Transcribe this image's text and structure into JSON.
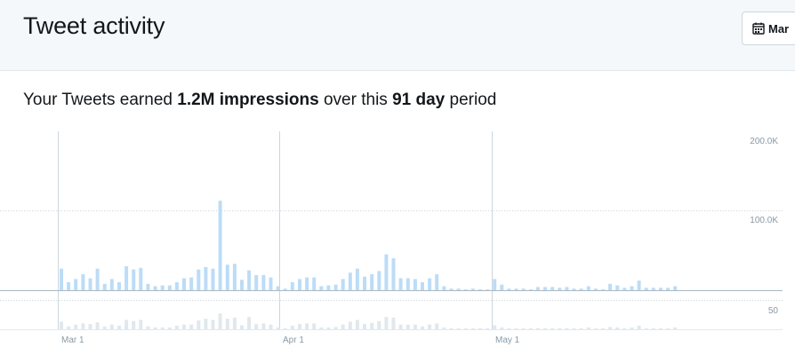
{
  "header": {
    "title": "Tweet activity",
    "date_button_label": "Mar",
    "calendar_icon": "calendar-icon"
  },
  "summary": {
    "prefix": "Your Tweets earned ",
    "impressions": "1.2M impressions",
    "middle": " over this ",
    "days": "91 day",
    "suffix": " period"
  },
  "colors": {
    "impressions_bar": "#bcdcf7",
    "engagements_bar": "#e1e8ed",
    "gridline": "#ccd6dd",
    "axis_text": "#8899a6"
  },
  "chart_data": [
    {
      "type": "bar",
      "title": "",
      "series": [
        {
          "values": [
            27,
            10,
            14,
            20,
            15,
            27,
            8,
            14,
            10,
            30,
            26,
            28,
            8,
            5,
            6,
            6,
            10,
            15,
            16,
            26,
            29,
            27,
            112,
            32,
            33,
            13,
            25,
            19,
            19,
            16,
            5,
            2,
            10,
            14,
            16,
            16,
            5,
            6,
            7,
            14,
            22,
            27,
            17,
            20,
            24,
            45,
            40,
            15,
            15,
            14,
            10,
            15,
            20,
            5,
            2,
            2,
            1,
            2,
            1,
            1,
            14,
            7,
            2,
            2,
            2,
            1,
            4,
            4,
            4,
            3,
            4,
            2,
            2,
            5,
            2,
            1,
            8,
            6,
            3,
            5,
            12,
            3,
            3,
            3,
            3,
            5
          ]
        }
      ],
      "y_ticks": [
        "200.0K",
        "100.0K"
      ],
      "ylim": [
        0,
        200000
      ],
      "x_ticks": [
        "Mar 1",
        "Apr 1",
        "May 1"
      ],
      "ylabel": "",
      "xlabel": ""
    },
    {
      "type": "bar",
      "title": "",
      "series": [
        {
          "values": [
            13,
            5,
            8,
            10,
            9,
            12,
            5,
            8,
            6,
            16,
            14,
            16,
            5,
            3,
            3,
            3,
            6,
            8,
            8,
            15,
            18,
            16,
            27,
            18,
            20,
            7,
            21,
            9,
            10,
            8,
            3,
            1,
            6,
            9,
            10,
            10,
            3,
            3,
            4,
            8,
            13,
            16,
            9,
            11,
            14,
            21,
            20,
            8,
            8,
            8,
            5,
            8,
            10,
            3,
            1,
            1,
            1,
            1,
            1,
            1,
            7,
            3,
            1,
            1,
            1,
            1,
            2,
            2,
            2,
            2,
            2,
            1,
            1,
            3,
            1,
            1,
            4,
            3,
            1,
            3,
            6,
            1,
            1,
            1,
            1,
            3
          ]
        }
      ],
      "y_ticks": [
        "50"
      ],
      "x_ticks": [
        "Mar 1",
        "Apr 1",
        "May 1"
      ],
      "ylabel": "",
      "xlabel": ""
    }
  ]
}
